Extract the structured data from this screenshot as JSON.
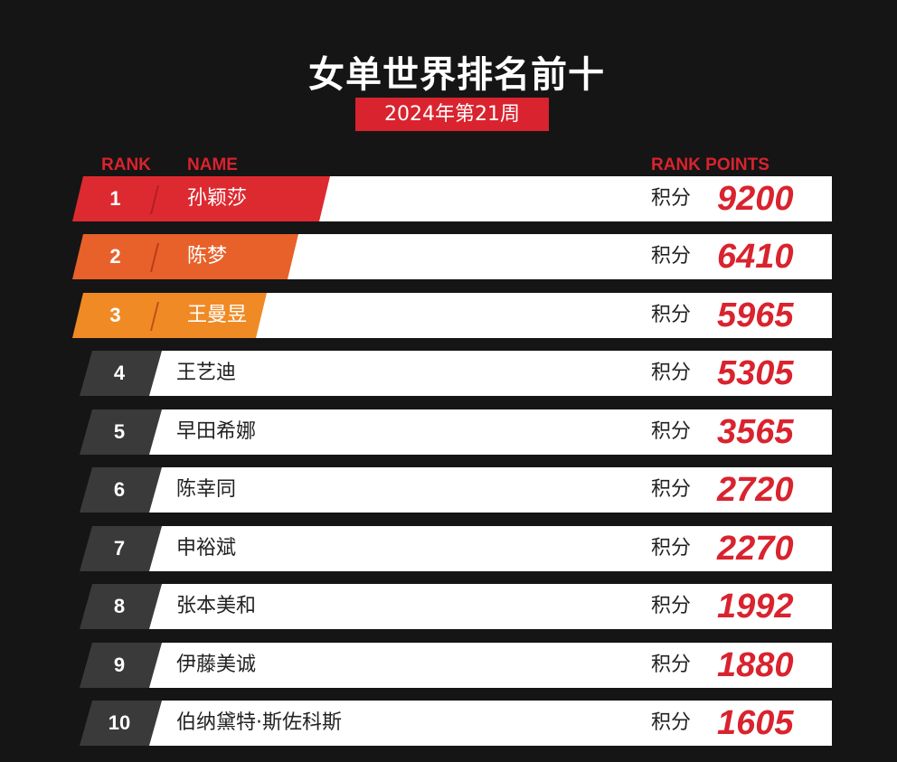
{
  "title": "女单世界排名前十",
  "subtitle": "2024年第21周",
  "headers": {
    "rank": "RANK",
    "name": "NAME",
    "points": "RANK POINTS"
  },
  "points_label": "积分",
  "colors": {
    "accent": "#d9232e",
    "rank1": "#dd2a30",
    "rank2": "#e8612a",
    "rank3": "#f08a25",
    "rank_other": "#3a3a3a"
  },
  "rows": [
    {
      "rank": "1",
      "name": "孙颖莎",
      "points": "9200"
    },
    {
      "rank": "2",
      "name": "陈梦",
      "points": "6410"
    },
    {
      "rank": "3",
      "name": "王曼昱",
      "points": "5965"
    },
    {
      "rank": "4",
      "name": "王艺迪",
      "points": "5305"
    },
    {
      "rank": "5",
      "name": "早田希娜",
      "points": "3565"
    },
    {
      "rank": "6",
      "name": "陈幸同",
      "points": "2720"
    },
    {
      "rank": "7",
      "name": "申裕斌",
      "points": "2270"
    },
    {
      "rank": "8",
      "name": "张本美和",
      "points": "1992"
    },
    {
      "rank": "9",
      "name": "伊藤美诚",
      "points": "1880"
    },
    {
      "rank": "10",
      "name": "伯纳黛特·斯佐科斯",
      "points": "1605"
    }
  ]
}
